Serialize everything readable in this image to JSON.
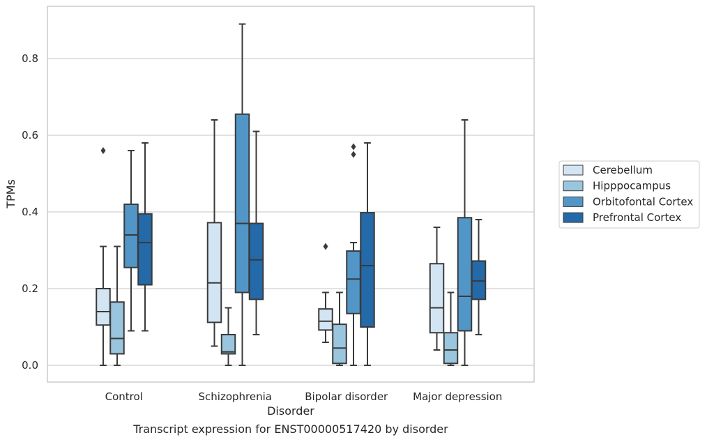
{
  "chart_data": {
    "type": "box",
    "xlabel": "Disorder",
    "ylabel": "TPMs",
    "caption": "Transcript expression for ENST00000517420 by disorder",
    "categories": [
      "Control",
      "Schizophrenia",
      "Bipolar disorder",
      "Major depression"
    ],
    "ylim": [
      -0.044,
      0.935
    ],
    "yticks": [
      0.0,
      0.2,
      0.4,
      0.6,
      0.8
    ],
    "ytick_labels": [
      "0.0",
      "0.2",
      "0.4",
      "0.6",
      "0.8"
    ],
    "grid": "horizontal",
    "legend_position": "right",
    "series": [
      {
        "name": "Cerebellum",
        "color": "#d3e4f3",
        "boxes": [
          {
            "whisker_low": 0.0,
            "q1": 0.105,
            "median": 0.14,
            "q3": 0.2,
            "whisker_high": 0.31,
            "outliers": [
              0.56
            ]
          },
          {
            "whisker_low": 0.05,
            "q1": 0.112,
            "median": 0.215,
            "q3": 0.372,
            "whisker_high": 0.64,
            "outliers": []
          },
          {
            "whisker_low": 0.06,
            "q1": 0.092,
            "median": 0.115,
            "q3": 0.147,
            "whisker_high": 0.19,
            "outliers": [
              0.31
            ]
          },
          {
            "whisker_low": 0.04,
            "q1": 0.085,
            "median": 0.15,
            "q3": 0.265,
            "whisker_high": 0.36,
            "outliers": []
          }
        ]
      },
      {
        "name": "Hipppocampus",
        "color": "#9ac5de",
        "boxes": [
          {
            "whisker_low": 0.0,
            "q1": 0.03,
            "median": 0.07,
            "q3": 0.165,
            "whisker_high": 0.31,
            "outliers": []
          },
          {
            "whisker_low": 0.0,
            "q1": 0.03,
            "median": 0.035,
            "q3": 0.08,
            "whisker_high": 0.15,
            "outliers": []
          },
          {
            "whisker_low": 0.0,
            "q1": 0.005,
            "median": 0.045,
            "q3": 0.107,
            "whisker_high": 0.19,
            "outliers": []
          },
          {
            "whisker_low": 0.0,
            "q1": 0.005,
            "median": 0.04,
            "q3": 0.085,
            "whisker_high": 0.19,
            "outliers": []
          }
        ]
      },
      {
        "name": "Orbitofontal Cortex",
        "color": "#5296c7",
        "boxes": [
          {
            "whisker_low": 0.09,
            "q1": 0.255,
            "median": 0.34,
            "q3": 0.42,
            "whisker_high": 0.56,
            "outliers": []
          },
          {
            "whisker_low": 0.0,
            "q1": 0.19,
            "median": 0.37,
            "q3": 0.655,
            "whisker_high": 0.89,
            "outliers": []
          },
          {
            "whisker_low": 0.0,
            "q1": 0.135,
            "median": 0.225,
            "q3": 0.298,
            "whisker_high": 0.32,
            "outliers": [
              0.55,
              0.57
            ]
          },
          {
            "whisker_low": 0.0,
            "q1": 0.09,
            "median": 0.18,
            "q3": 0.385,
            "whisker_high": 0.64,
            "outliers": []
          }
        ]
      },
      {
        "name": "Prefrontal Cortex",
        "color": "#2469a8",
        "boxes": [
          {
            "whisker_low": 0.09,
            "q1": 0.21,
            "median": 0.32,
            "q3": 0.395,
            "whisker_high": 0.58,
            "outliers": []
          },
          {
            "whisker_low": 0.08,
            "q1": 0.172,
            "median": 0.275,
            "q3": 0.37,
            "whisker_high": 0.61,
            "outliers": []
          },
          {
            "whisker_low": 0.0,
            "q1": 0.1,
            "median": 0.26,
            "q3": 0.398,
            "whisker_high": 0.58,
            "outliers": []
          },
          {
            "whisker_low": 0.08,
            "q1": 0.172,
            "median": 0.22,
            "q3": 0.272,
            "whisker_high": 0.38,
            "outliers": []
          }
        ]
      }
    ]
  }
}
